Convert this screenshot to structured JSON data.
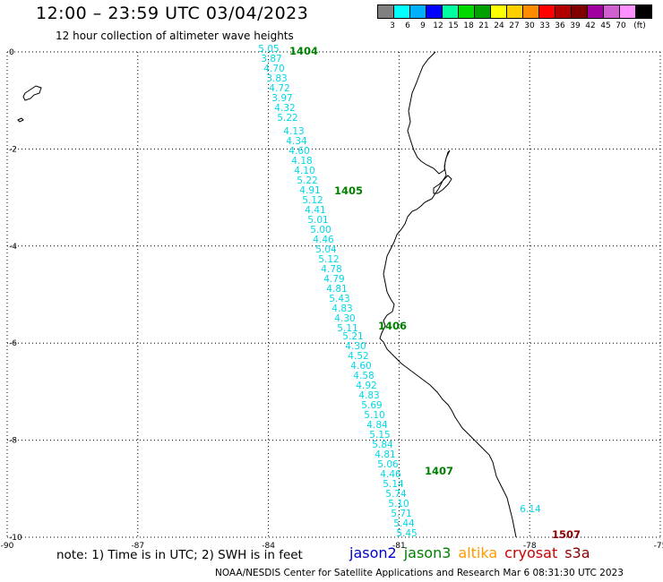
{
  "header": {
    "title": "12:00 – 23:59 UTC 03/04/2023",
    "subtitle": "12 hour collection of altimeter wave heights"
  },
  "legend": {
    "colors": [
      "#808080",
      "#00ffff",
      "#00b0ff",
      "#0000ff",
      "#00ffa0",
      "#00d800",
      "#00a000",
      "#ffff00",
      "#ffd000",
      "#ff8c00",
      "#ff0000",
      "#b00000",
      "#800000",
      "#a000a0",
      "#d060d0",
      "#ff90ff",
      "#000000"
    ],
    "ticks": [
      "3",
      "6",
      "9",
      "12",
      "15",
      "18",
      "21",
      "24",
      "27",
      "30",
      "33",
      "36",
      "39",
      "42",
      "45",
      "70",
      "(ft)"
    ]
  },
  "map": {
    "lon_range": [
      -90,
      -75
    ],
    "lat_range": [
      -10,
      0
    ],
    "x_ticks": [
      "-90",
      "-87",
      "-84",
      "-81",
      "-78",
      "-75"
    ],
    "y_ticks": [
      "0",
      "-2",
      "-4",
      "-6",
      "-8",
      "-10"
    ],
    "swh_color": "#00d8e8",
    "swh_values": [
      "5.05",
      "3.87",
      "4.70",
      "3.83",
      "4.72",
      "3.97",
      "4.32",
      "5.22",
      "4.13",
      "4.34",
      "4.60",
      "4.18",
      "4.10",
      "5.22",
      "4.91",
      "5.12",
      "4.41",
      "5.01",
      "5.00",
      "4.46",
      "5.04",
      "5.12",
      "4.78",
      "4.79",
      "4.81",
      "5.43",
      "4.83",
      "4.30",
      "5.11",
      "5.21",
      "4.30",
      "4.52",
      "4.60",
      "4.58",
      "4.92",
      "4.83",
      "5.69",
      "5.10",
      "4.84",
      "5.15",
      "5.84",
      "4.81",
      "5.06",
      "4.46",
      "5.14",
      "5.74",
      "5.10",
      "5.71",
      "5.44",
      "5.45",
      "6.14"
    ],
    "passes": [
      {
        "label": "1404",
        "color": "#008000"
      },
      {
        "label": "1405",
        "color": "#008000"
      },
      {
        "label": "1406",
        "color": "#008000"
      },
      {
        "label": "1407",
        "color": "#008000"
      },
      {
        "label": "1507",
        "color": "#8b0000"
      }
    ]
  },
  "footer": {
    "note": "note: 1) Time is in UTC; 2) SWH is in feet",
    "missions": [
      {
        "name": "jason2",
        "color": "#0000cc"
      },
      {
        "name": "jason3",
        "color": "#008000"
      },
      {
        "name": "altika",
        "color": "#ff9900"
      },
      {
        "name": "cryosat",
        "color": "#cc0000"
      },
      {
        "name": "s3a",
        "color": "#8b0000"
      }
    ],
    "credit": "NOAA/NESDIS Center for Satellite Applications and Research   Mar  6 08:31:30 UTC 2023"
  }
}
